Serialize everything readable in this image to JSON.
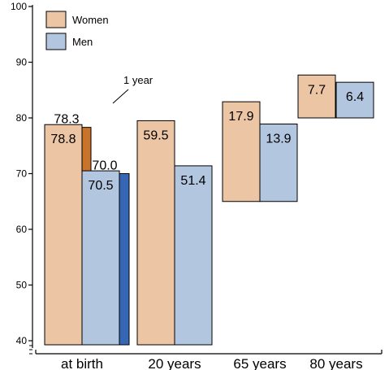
{
  "chart_data": {
    "type": "bar",
    "title": "",
    "xlabel": "",
    "ylabel": "",
    "ylim": [
      40,
      100
    ],
    "yticks": [
      40,
      50,
      60,
      70,
      80,
      90,
      100
    ],
    "axis_break": true,
    "grid": false,
    "legend_position": "top-left",
    "categories": [
      "at birth",
      "20 years",
      "65 years",
      "80 years"
    ],
    "series": [
      {
        "name": "Women",
        "color": "#ecc5a4",
        "base": [
          0,
          20,
          65,
          80
        ],
        "values": [
          78.8,
          59.5,
          17.9,
          7.7
        ]
      },
      {
        "name": "Men",
        "color": "#b3c6e0",
        "base": [
          0,
          20,
          65,
          80
        ],
        "values": [
          70.5,
          51.4,
          13.9,
          6.4
        ]
      }
    ],
    "shadow_series": [
      {
        "series": "Women",
        "color": "#c9742a",
        "category": "at birth",
        "value": 78.3
      },
      {
        "series": "Men",
        "color": "#3567b5",
        "category": "at birth",
        "value": 70.0
      }
    ],
    "annotations": [
      {
        "text": "1 year"
      }
    ]
  }
}
